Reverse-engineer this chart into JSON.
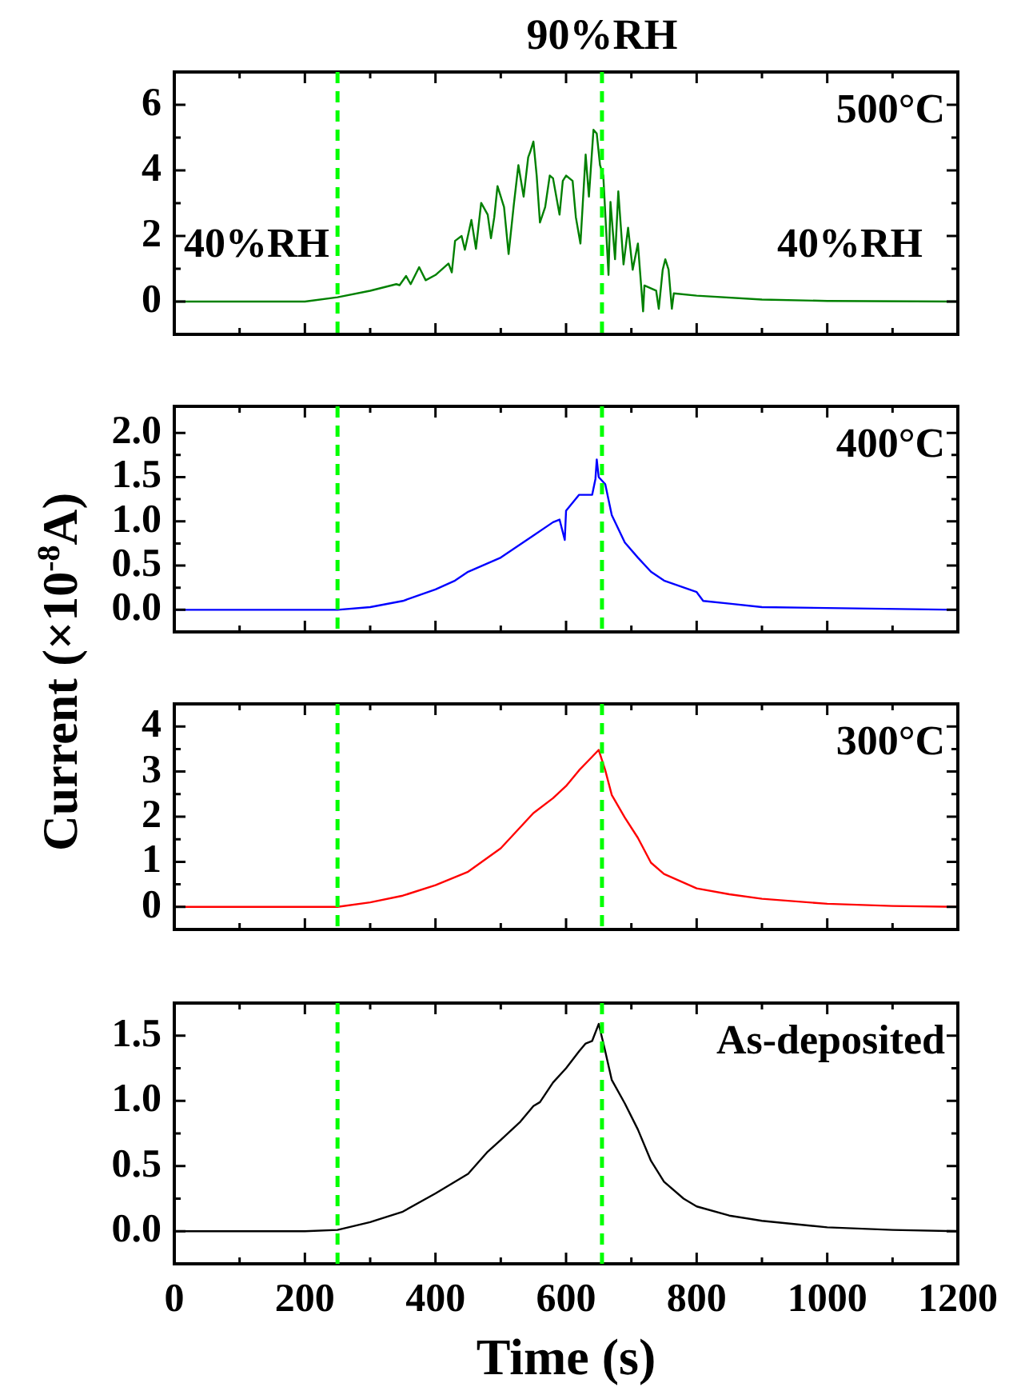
{
  "chart_data": [
    {
      "type": "line",
      "ylabel": "Current (×10$^{-8}$A)",
      "annotations": [
        "500°C",
        "40%RH",
        "40%RH"
      ],
      "tick_labels": "y",
      "xlim": [
        0,
        1200
      ],
      "xticks": [
        0,
        {
          "value": 100,
          "label": null
        },
        200,
        {
          "value": 300,
          "label": null
        },
        400,
        {
          "value": 500,
          "label": null
        },
        600,
        {
          "value": 700,
          "label": null
        },
        800,
        {
          "value": 900,
          "label": null
        },
        1000,
        {
          "value": 1100,
          "label": null
        },
        1200
      ],
      "ylim": [
        -1,
        7
      ],
      "yticks": [
        0,
        {
          "value": 1,
          "label": null
        },
        2,
        {
          "value": 3,
          "label": null
        },
        4,
        {
          "value": 5,
          "label": null
        },
        6
      ],
      "ref_lines": [
        {
          "axis": "x",
          "value": 250,
          "color": "#00ff00",
          "line_style": "dashed"
        },
        {
          "axis": "x",
          "value": 655,
          "label": "90%RH",
          "color": "#00ff00",
          "line_style": "dashed"
        }
      ],
      "series": [
        {
          "color": "#008000",
          "x": [
            0,
            200,
            250,
            300,
            340,
            345,
            355,
            362,
            375,
            385,
            400,
            420,
            425,
            430,
            440,
            445,
            455,
            462,
            470,
            480,
            485,
            490,
            495,
            505,
            512,
            520,
            527,
            535,
            542,
            545,
            550,
            555,
            560,
            568,
            575,
            580,
            590,
            595,
            600,
            610,
            615,
            622,
            630,
            635,
            642,
            647,
            652,
            657,
            665,
            668,
            675,
            680,
            688,
            695,
            702,
            710,
            718,
            720,
            738,
            742,
            748,
            752,
            757,
            762,
            765,
            800,
            900,
            1000,
            1200
          ],
          "values": [
            0,
            0,
            0.13,
            0.33,
            0.53,
            0.5,
            0.78,
            0.53,
            1.05,
            0.65,
            0.81,
            1.16,
            0.89,
            1.85,
            2.0,
            1.58,
            2.49,
            1.61,
            3.01,
            2.65,
            1.93,
            2.57,
            3.52,
            2.88,
            1.45,
            2.96,
            4.16,
            3.2,
            4.4,
            4.56,
            4.88,
            3.84,
            2.41,
            2.88,
            3.84,
            3.76,
            2.65,
            3.68,
            3.84,
            3.68,
            2.57,
            1.77,
            4.48,
            3.2,
            5.24,
            5.12,
            4.16,
            3.84,
            0.81,
            3.04,
            1.29,
            3.36,
            1.13,
            2.25,
            0.97,
            1.77,
            -0.3,
            0.49,
            0.33,
            -0.22,
            0.97,
            1.29,
            0.97,
            -0.22,
            0.25,
            0.18,
            0.06,
            0.02,
            0
          ]
        }
      ]
    },
    {
      "type": "line",
      "annotations": [
        "400°C"
      ],
      "tick_labels": "y",
      "xlim": [
        0,
        1200
      ],
      "xticks": [
        0,
        {
          "value": 100,
          "label": null
        },
        200,
        {
          "value": 300,
          "label": null
        },
        400,
        {
          "value": 500,
          "label": null
        },
        600,
        {
          "value": 700,
          "label": null
        },
        800,
        {
          "value": 900,
          "label": null
        },
        1000,
        {
          "value": 1100,
          "label": null
        },
        1200
      ],
      "ylim": [
        -0.25,
        2.3
      ],
      "yticks": [
        {
          "value": 0,
          "label": "0.0"
        },
        {
          "value": 0.25,
          "label": null
        },
        0.5,
        {
          "value": 0.75,
          "label": null
        },
        {
          "value": 1,
          "label": "1.0"
        },
        {
          "value": 1.25,
          "label": null
        },
        1.5,
        {
          "value": 1.75,
          "label": null
        },
        {
          "value": 2,
          "label": "2.0"
        }
      ],
      "ref_lines": [
        {
          "axis": "x",
          "value": 250,
          "color": "#00ff00",
          "line_style": "dashed"
        },
        {
          "axis": "x",
          "value": 655,
          "color": "#00ff00",
          "line_style": "dashed"
        }
      ],
      "series": [
        {
          "color": "#0000ff",
          "x": [
            0,
            250,
            300,
            350,
            400,
            430,
            450,
            500,
            550,
            580,
            590,
            598,
            600,
            620,
            640,
            645,
            647,
            650,
            660,
            670,
            690,
            710,
            730,
            750,
            800,
            810,
            850,
            900,
            1000,
            1200
          ],
          "values": [
            0,
            0,
            0.03,
            0.1,
            0.23,
            0.33,
            0.43,
            0.59,
            0.84,
            0.99,
            1.02,
            0.79,
            1.12,
            1.3,
            1.3,
            1.48,
            1.7,
            1.5,
            1.42,
            1.07,
            0.76,
            0.59,
            0.43,
            0.33,
            0.2,
            0.1,
            0.07,
            0.03,
            0.02,
            0
          ]
        }
      ]
    },
    {
      "type": "line",
      "annotations": [
        "300°C"
      ],
      "tick_labels": "y",
      "xlim": [
        0,
        1200
      ],
      "xticks": [
        0,
        {
          "value": 100,
          "label": null
        },
        200,
        {
          "value": 300,
          "label": null
        },
        400,
        {
          "value": 500,
          "label": null
        },
        600,
        {
          "value": 700,
          "label": null
        },
        800,
        {
          "value": 900,
          "label": null
        },
        1000,
        {
          "value": 1100,
          "label": null
        },
        1200
      ],
      "ylim": [
        -0.5,
        4.5
      ],
      "yticks": [
        0,
        {
          "value": 0.5,
          "label": null
        },
        1,
        {
          "value": 1.5,
          "label": null
        },
        2,
        {
          "value": 2.5,
          "label": null
        },
        3,
        {
          "value": 3.5,
          "label": null
        },
        4
      ],
      "ref_lines": [
        {
          "axis": "x",
          "value": 250,
          "color": "#00ff00",
          "line_style": "dashed"
        },
        {
          "axis": "x",
          "value": 655,
          "color": "#00ff00",
          "line_style": "dashed"
        }
      ],
      "series": [
        {
          "color": "#ff0000",
          "x": [
            0,
            200,
            250,
            300,
            350,
            400,
            450,
            500,
            550,
            580,
            600,
            620,
            640,
            650,
            660,
            670,
            690,
            710,
            730,
            750,
            800,
            850,
            900,
            1000,
            1100,
            1200
          ],
          "values": [
            0,
            0,
            0,
            0.1,
            0.25,
            0.48,
            0.78,
            1.3,
            2.08,
            2.41,
            2.68,
            3.03,
            3.33,
            3.48,
            3.03,
            2.48,
            1.98,
            1.53,
            0.98,
            0.73,
            0.41,
            0.28,
            0.18,
            0.07,
            0.02,
            0
          ]
        }
      ]
    },
    {
      "type": "line",
      "annotations": [
        "As-deposited"
      ],
      "xlabel": "Time (s)",
      "xlim": [
        0,
        1200
      ],
      "xticks": [
        0,
        {
          "value": 100,
          "label": null
        },
        200,
        {
          "value": 300,
          "label": null
        },
        400,
        {
          "value": 500,
          "label": null
        },
        600,
        {
          "value": 700,
          "label": null
        },
        800,
        {
          "value": 900,
          "label": null
        },
        1000,
        {
          "value": 1100,
          "label": null
        },
        1200
      ],
      "ylim": [
        -0.25,
        1.75
      ],
      "yticks": [
        {
          "value": 0,
          "label": "0.0"
        },
        {
          "value": 0.25,
          "label": null
        },
        0.5,
        {
          "value": 0.75,
          "label": null
        },
        {
          "value": 1,
          "label": "1.0"
        },
        {
          "value": 1.25,
          "label": null
        },
        1.5
      ],
      "ref_lines": [
        {
          "axis": "x",
          "value": 250,
          "color": "#00ff00",
          "line_style": "dashed"
        },
        {
          "axis": "x",
          "value": 655,
          "color": "#00ff00",
          "line_style": "dashed"
        }
      ],
      "series": [
        {
          "color": "#000000",
          "x": [
            0,
            100,
            200,
            250,
            300,
            350,
            400,
            450,
            480,
            500,
            530,
            550,
            560,
            580,
            600,
            620,
            630,
            640,
            650,
            660,
            670,
            690,
            710,
            730,
            750,
            780,
            800,
            850,
            900,
            1000,
            1100,
            1200
          ],
          "values": [
            0,
            0,
            0,
            0.01,
            0.07,
            0.15,
            0.29,
            0.44,
            0.61,
            0.7,
            0.84,
            0.96,
            0.99,
            1.14,
            1.25,
            1.38,
            1.44,
            1.46,
            1.59,
            1.38,
            1.16,
            0.98,
            0.78,
            0.54,
            0.38,
            0.25,
            0.19,
            0.12,
            0.08,
            0.03,
            0.01,
            0
          ]
        }
      ]
    }
  ]
}
